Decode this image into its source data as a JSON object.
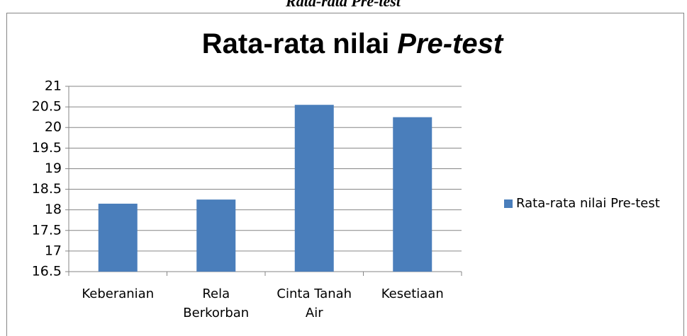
{
  "caption": "Rata-rata Pre-test",
  "chart_data": {
    "type": "bar",
    "title": [
      "Rata-rata nilai",
      "Pre-test"
    ],
    "categories": [
      "Keberanian",
      "Rela Berkorban",
      "Cinta Tanah Air",
      "Kesetiaan"
    ],
    "series": [
      {
        "name": "Rata-rata nilai Pre-test",
        "color": "#4a7ebb",
        "values": [
          18.15,
          18.25,
          20.55,
          20.25
        ]
      }
    ],
    "ylim": [
      16.5,
      21
    ],
    "yticks": [
      16.5,
      17,
      17.5,
      18,
      18.5,
      19,
      19.5,
      20,
      20.5,
      21
    ],
    "grid": true,
    "legend": "right"
  }
}
